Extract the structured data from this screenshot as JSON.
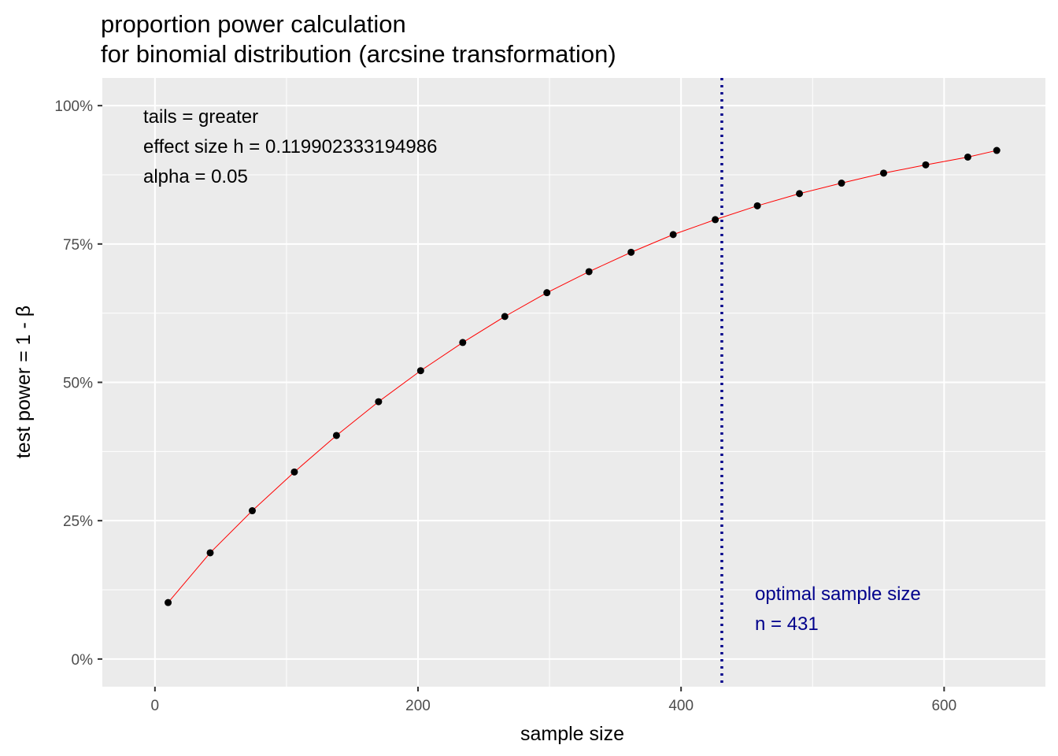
{
  "chart_data": {
    "type": "line",
    "title_lines": [
      "proportion power calculation",
      "for binomial distribution (arcsine transformation)"
    ],
    "xlabel": "sample size",
    "ylabel": "test power = 1 - β",
    "xlim": [
      -40,
      677
    ],
    "ylim": [
      -0.05,
      1.05
    ],
    "x_ticks": [
      0,
      200,
      400,
      600
    ],
    "x_tick_labels": [
      "0",
      "200",
      "400",
      "600"
    ],
    "y_ticks": [
      0,
      0.25,
      0.5,
      0.75,
      1.0
    ],
    "y_tick_labels": [
      "0%",
      "25%",
      "50%",
      "75%",
      "100%"
    ],
    "grid": true,
    "line_color": "#ff0000",
    "point_color": "#000000",
    "series": [
      {
        "x": [
          10,
          42,
          74,
          106,
          138,
          170,
          202,
          234,
          266,
          298,
          330,
          362,
          394,
          426,
          458,
          490,
          522,
          554,
          586,
          618,
          640
        ],
        "y": [
          0.102,
          0.192,
          0.268,
          0.338,
          0.404,
          0.465,
          0.521,
          0.572,
          0.619,
          0.662,
          0.7,
          0.735,
          0.767,
          0.794,
          0.819,
          0.841,
          0.86,
          0.878,
          0.893,
          0.907,
          0.919
        ]
      }
    ],
    "vline": {
      "x": 431,
      "color": "#00008b",
      "style": "dotted"
    },
    "annotations": {
      "params": [
        "tails = greater",
        "effect size h = 0.119902333194986",
        "alpha = 0.05"
      ],
      "optimal": [
        "optimal sample size",
        "n = 431"
      ]
    }
  }
}
